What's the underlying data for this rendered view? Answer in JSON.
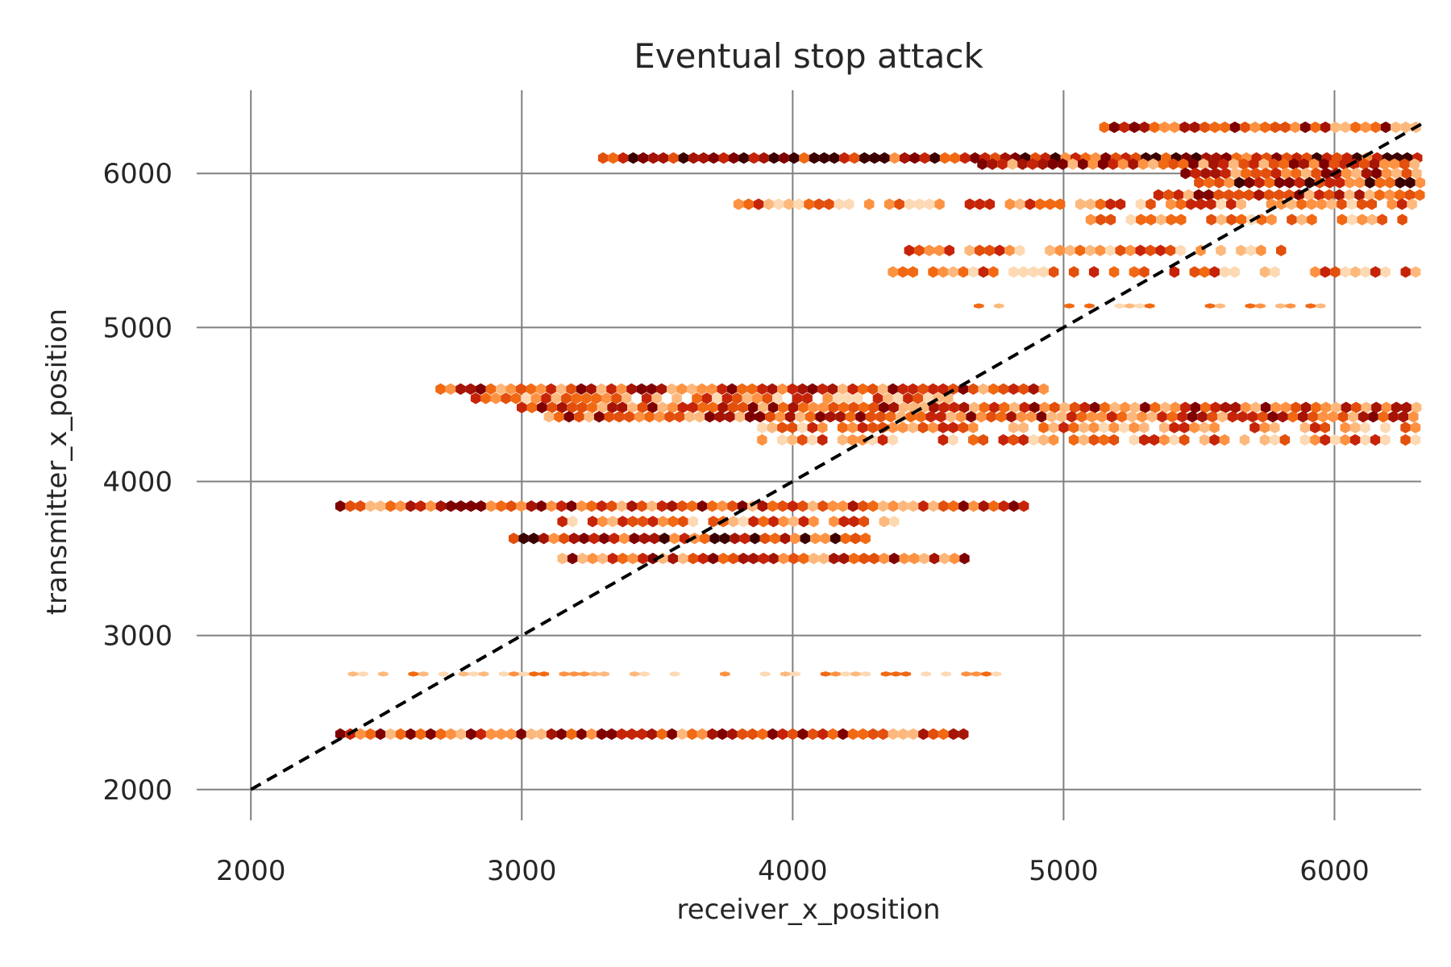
{
  "chart_data": {
    "type": "heatmap",
    "subtype": "hexbin",
    "title": "Eventual stop attack",
    "xlabel": "receiver_x_position",
    "ylabel": "transmitter_x_position",
    "xlim": [
      1800,
      6320
    ],
    "ylim": [
      1800,
      6540
    ],
    "xticks": [
      "2000",
      "3000",
      "4000",
      "5000",
      "6000"
    ],
    "yticks": [
      "2000",
      "3000",
      "4000",
      "5000",
      "6000"
    ],
    "grid": true,
    "colormap": [
      "#fdd9b4",
      "#fdb97d",
      "#fd9243",
      "#f16913",
      "#e34f0c",
      "#c62408",
      "#a51405",
      "#7f0000",
      "#3b0000"
    ],
    "reference_line": {
      "style": "dashed",
      "color": "#000000",
      "from": [
        2000,
        2000
      ],
      "to": [
        6320,
        6320
      ]
    },
    "bands": [
      {
        "y": 6300,
        "x_from": 5150,
        "x_to": 6320,
        "density": 4
      },
      {
        "y": 6100,
        "x_from": 3300,
        "x_to": 6320,
        "density": 5
      },
      {
        "y": 6060,
        "x_from": 4700,
        "x_to": 6320,
        "density": 4
      },
      {
        "y": 6000,
        "x_from": 5450,
        "x_to": 6320,
        "density": 4
      },
      {
        "y": 5940,
        "x_from": 5500,
        "x_to": 6320,
        "density": 5
      },
      {
        "y": 5860,
        "x_from": 5350,
        "x_to": 6320,
        "density": 4
      },
      {
        "y": 5800,
        "x_from": 3800,
        "x_to": 6320,
        "density": 3
      },
      {
        "y": 5700,
        "x_from": 5100,
        "x_to": 6320,
        "density": 2
      },
      {
        "y": 5500,
        "x_from": 4430,
        "x_to": 5850,
        "density": 3
      },
      {
        "y": 5360,
        "x_from": 4370,
        "x_to": 6320,
        "density": 3
      },
      {
        "y": 5140,
        "x_from": 4650,
        "x_to": 5950,
        "density": 1
      },
      {
        "y": 4600,
        "x_from": 2700,
        "x_to": 4950,
        "density": 4
      },
      {
        "y": 4540,
        "x_from": 2830,
        "x_to": 4600,
        "density": 3
      },
      {
        "y": 4480,
        "x_from": 3000,
        "x_to": 6320,
        "density": 4
      },
      {
        "y": 4420,
        "x_from": 3100,
        "x_to": 6320,
        "density": 4
      },
      {
        "y": 4350,
        "x_from": 3850,
        "x_to": 6320,
        "density": 3
      },
      {
        "y": 4270,
        "x_from": 3850,
        "x_to": 6320,
        "density": 3
      },
      {
        "y": 3840,
        "x_from": 2330,
        "x_to": 4880,
        "density": 4
      },
      {
        "y": 3740,
        "x_from": 3150,
        "x_to": 4400,
        "density": 3
      },
      {
        "y": 3630,
        "x_from": 2970,
        "x_to": 4300,
        "density": 5
      },
      {
        "y": 3500,
        "x_from": 3150,
        "x_to": 4650,
        "density": 4
      },
      {
        "y": 2750,
        "x_from": 2340,
        "x_to": 4880,
        "density": 1
      },
      {
        "y": 2360,
        "x_from": 2330,
        "x_to": 4650,
        "density": 4
      }
    ]
  }
}
